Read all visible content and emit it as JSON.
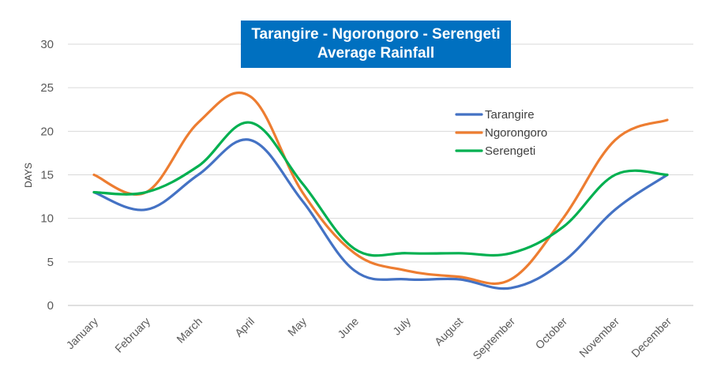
{
  "chart_data": {
    "type": "line",
    "title": "Tarangire - Ngorongoro - Serengeti",
    "subtitle": "Average Rainfall",
    "xlabel": "",
    "ylabel": "DAYS",
    "ylim": [
      0,
      30
    ],
    "yticks": [
      "0",
      "5",
      "10",
      "15",
      "20",
      "25",
      "30"
    ],
    "grid": true,
    "legend_position": "right",
    "categories": [
      "January",
      "February",
      "March",
      "April",
      "May",
      "June",
      "July",
      "August",
      "September",
      "October",
      "November",
      "December"
    ],
    "series": [
      {
        "name": "Tarangire",
        "color": "#4472c4",
        "values": [
          13,
          11,
          15,
          19,
          12,
          4,
          3,
          3,
          2,
          5,
          11,
          15
        ]
      },
      {
        "name": "Ngorongoro",
        "color": "#ed7d31",
        "values": [
          15,
          13,
          21,
          24,
          13,
          6,
          4,
          3.3,
          3,
          10,
          19,
          21.3
        ]
      },
      {
        "name": "Serengeti",
        "color": "#00b050",
        "values": [
          13,
          13,
          16,
          21,
          14,
          6.5,
          6,
          6,
          6,
          9,
          15,
          15
        ]
      }
    ]
  }
}
